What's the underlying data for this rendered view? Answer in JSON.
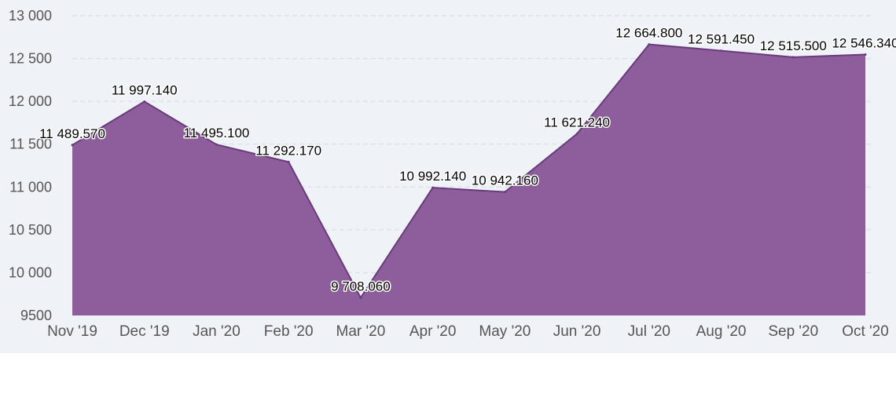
{
  "chart_data": {
    "type": "area",
    "title": "",
    "xlabel": "",
    "ylabel": "",
    "categories": [
      "Nov '19",
      "Dec '19",
      "Jan '20",
      "Feb '20",
      "Mar '20",
      "Apr '20",
      "May '20",
      "Jun '20",
      "Jul '20",
      "Aug '20",
      "Sep '20",
      "Oct '20"
    ],
    "values": [
      11489.57,
      11997.14,
      11495.1,
      11292.17,
      9708.06,
      10992.14,
      10942.16,
      11621.24,
      12664.8,
      12591.45,
      12515.5,
      12546.34
    ],
    "data_labels": [
      "11 489.570",
      "11 997.140",
      "11 495.100",
      "11 292.170",
      "9 708.060",
      "10 992.140",
      "10 942.160",
      "11 621.240",
      "12 664.800",
      "12 591.450",
      "12 515.500",
      "12 546.340"
    ],
    "ylim": [
      9500,
      13000
    ],
    "y_ticks": [
      9500,
      10000,
      10500,
      11000,
      11500,
      12000,
      12500,
      13000
    ],
    "y_tick_labels": [
      "9500",
      "10 000",
      "10 500",
      "11 000",
      "11 500",
      "12 000",
      "12 500",
      "13 000"
    ],
    "grid": true,
    "legend": "none",
    "colors": {
      "fill": "#8d5e9b",
      "line": "#6a3a7c",
      "background": "#eff2f6",
      "grid": "#d6dbe2",
      "tick_text": "#555555"
    }
  }
}
